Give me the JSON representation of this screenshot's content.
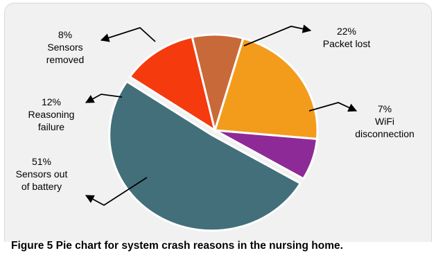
{
  "chart_data": {
    "type": "pie",
    "slices": [
      {
        "label_lines": [
          "22%",
          "Packet lost"
        ],
        "value": 22,
        "color": "#f39c1c"
      },
      {
        "label_lines": [
          "7%",
          "WiFi",
          "disconnection"
        ],
        "value": 7,
        "color": "#8e2a97"
      },
      {
        "label_lines": [
          "51%",
          "Sensors out",
          "of battery"
        ],
        "value": 51,
        "color": "#426f7a"
      },
      {
        "label_lines": [
          "12%",
          "Reasoning",
          "failure"
        ],
        "value": 12,
        "color": "#f53a0e"
      },
      {
        "label_lines": [
          "8%",
          "Sensors",
          "removed"
        ],
        "value": 8,
        "color": "#c8693a"
      }
    ],
    "legend": "none"
  },
  "caption": {
    "label": "Figure 5",
    "text": "Pie chart for system crash reasons in the nursing home."
  }
}
